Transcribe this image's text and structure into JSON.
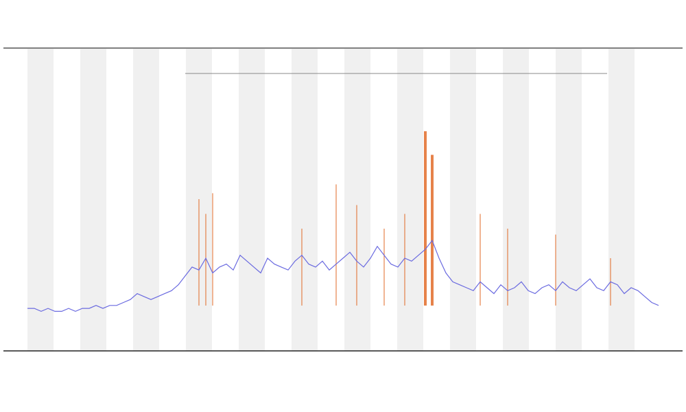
{
  "chart_data": {
    "type": "line",
    "x": [
      0,
      1,
      2,
      3,
      4,
      5,
      6,
      7,
      8,
      9,
      10,
      11,
      12,
      13,
      14,
      15,
      16,
      17,
      18,
      19,
      20,
      21,
      22,
      23,
      24,
      25,
      26,
      27,
      28,
      29,
      30,
      31,
      32,
      33,
      34,
      35,
      36,
      37,
      38,
      39,
      40,
      41,
      42,
      43,
      44,
      45,
      46,
      47,
      48,
      49,
      50,
      51,
      52,
      53,
      54,
      55,
      56,
      57,
      58,
      59,
      60,
      61,
      62,
      63,
      64,
      65,
      66,
      67,
      68,
      69,
      70,
      71,
      72,
      73,
      74,
      75,
      76,
      77,
      78,
      79,
      80,
      81,
      82,
      83,
      84,
      85,
      86,
      87,
      88,
      89,
      90,
      91,
      92
    ],
    "xlim": [
      0,
      92
    ],
    "ylim": [
      0,
      100
    ],
    "series": [
      {
        "color": "#6a6ae0",
        "values": [
          13,
          13,
          12,
          13,
          12,
          12,
          13,
          12,
          13,
          13,
          14,
          13,
          14,
          14,
          15,
          16,
          18,
          17,
          16,
          17,
          18,
          19,
          21,
          24,
          27,
          26,
          30,
          25,
          27,
          28,
          26,
          31,
          29,
          27,
          25,
          30,
          28,
          27,
          26,
          29,
          31,
          28,
          27,
          29,
          26,
          28,
          30,
          32,
          29,
          27,
          30,
          34,
          31,
          28,
          27,
          30,
          29,
          31,
          33,
          36,
          30,
          25,
          22,
          21,
          20,
          19,
          22,
          20,
          18,
          21,
          19,
          20,
          22,
          19,
          18,
          20,
          21,
          19,
          22,
          20,
          19,
          21,
          23,
          20,
          19,
          22,
          21,
          18,
          20,
          19,
          17,
          15,
          14
        ]
      },
      {
        "color": "#e0641e",
        "values": [
          null,
          null,
          null,
          null,
          null,
          null,
          null,
          null,
          null,
          null,
          null,
          null,
          null,
          null,
          null,
          null,
          null,
          null,
          null,
          null,
          null,
          null,
          null,
          null,
          null,
          50,
          45,
          52,
          null,
          null,
          null,
          null,
          null,
          null,
          null,
          null,
          null,
          null,
          null,
          null,
          40,
          null,
          null,
          null,
          null,
          55,
          null,
          null,
          48,
          null,
          null,
          null,
          40,
          null,
          null,
          45,
          null,
          null,
          73,
          65,
          null,
          null,
          null,
          null,
          null,
          null,
          45,
          null,
          null,
          null,
          40,
          null,
          null,
          null,
          null,
          null,
          null,
          38,
          null,
          null,
          null,
          null,
          null,
          null,
          null,
          30,
          null,
          null,
          null,
          null,
          null,
          null,
          null
        ]
      }
    ]
  }
}
